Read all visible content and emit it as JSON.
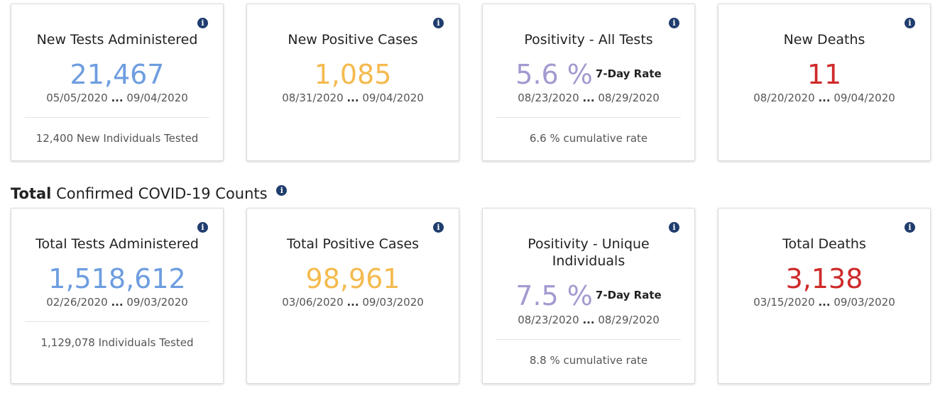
{
  "new": {
    "tests": {
      "title": "New Tests Administered",
      "value": "21,467",
      "start": "05/05/2020",
      "end": "09/04/2020",
      "footer": "12,400 New Individuals Tested"
    },
    "cases": {
      "title": "New Positive Cases",
      "value": "1,085",
      "start": "08/31/2020",
      "end": "09/04/2020"
    },
    "positivity": {
      "title": "Positivity - All Tests",
      "value": "5.6 %",
      "rate_label": "7-Day Rate",
      "start": "08/23/2020",
      "end": "08/29/2020",
      "footer": "6.6 % cumulative rate"
    },
    "deaths": {
      "title": "New Deaths",
      "value": "11",
      "start": "08/20/2020",
      "end": "09/04/2020"
    }
  },
  "section": {
    "bold": "Total",
    "rest": "Confirmed COVID-19 Counts"
  },
  "total": {
    "tests": {
      "title": "Total Tests Administered",
      "value": "1,518,612",
      "start": "02/26/2020",
      "end": "09/03/2020",
      "footer": "1,129,078 Individuals Tested"
    },
    "cases": {
      "title": "Total Positive Cases",
      "value": "98,961",
      "start": "03/06/2020",
      "end": "09/03/2020"
    },
    "positivity": {
      "title": "Positivity - Unique Individuals",
      "value": "7.5 %",
      "rate_label": "7-Day Rate",
      "start": "08/23/2020",
      "end": "08/29/2020",
      "footer": "8.8 % cumulative rate"
    },
    "deaths": {
      "title": "Total Deaths",
      "value": "3,138",
      "start": "03/15/2020",
      "end": "09/03/2020"
    }
  },
  "range_separator": "...",
  "info_icon": "i",
  "colors": {
    "tests": "#6d9de0",
    "cases": "#f5ba4e",
    "positivity": "#a39ad0",
    "deaths": "#cf2a2a",
    "info": "#1f3d6e"
  }
}
